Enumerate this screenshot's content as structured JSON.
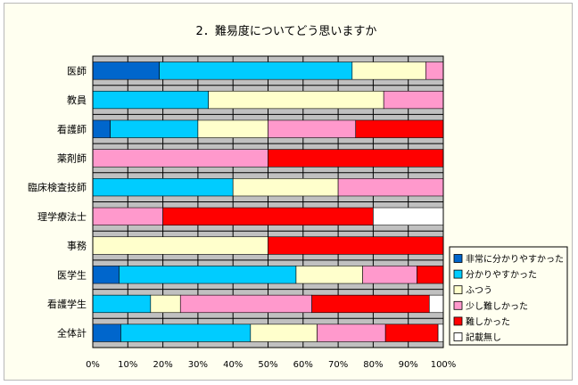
{
  "chart_data": {
    "type": "bar",
    "orientation": "horizontal",
    "stacked": "percent",
    "title": "2．難易度についてどう思いますか",
    "xlabel": "",
    "ylabel": "",
    "xlim": [
      0,
      100
    ],
    "x_ticks": [
      "0%",
      "10%",
      "20%",
      "30%",
      "40%",
      "50%",
      "60%",
      "70%",
      "80%",
      "90%",
      "100%"
    ],
    "categories": [
      "医師",
      "教員",
      "看護師",
      "薬剤師",
      "臨床検査技師",
      "理学療法士",
      "事務",
      "医学生",
      "看護学生",
      "全体計"
    ],
    "series": [
      {
        "name": "非常に分かりやすかった",
        "color": "#0066cc",
        "values": [
          19,
          0,
          5,
          0,
          0,
          0,
          0,
          7.5,
          0,
          8
        ]
      },
      {
        "name": "分かりやすかった",
        "color": "#00ccff",
        "values": [
          55,
          33,
          25,
          0,
          40,
          0,
          0,
          50.5,
          16.5,
          37
        ]
      },
      {
        "name": "ふつう",
        "color": "#ffffcc",
        "values": [
          21,
          50,
          20,
          0,
          30,
          0,
          50,
          19,
          8.5,
          19
        ]
      },
      {
        "name": "少し難しかった",
        "color": "#ff99cc",
        "values": [
          5,
          17,
          25,
          50,
          30,
          20,
          0,
          15.5,
          37.5,
          19.5
        ]
      },
      {
        "name": "難しかった",
        "color": "#ff0000",
        "values": [
          0,
          0,
          25,
          50,
          0,
          60,
          50,
          7.5,
          33.5,
          15
        ]
      },
      {
        "name": "記載無し",
        "color": "#ffffff",
        "values": [
          0,
          0,
          0,
          0,
          0,
          20,
          0,
          0,
          4,
          1.5
        ]
      }
    ],
    "grid": true,
    "legend_position": "right",
    "plot_background": "#c0c0c0"
  }
}
